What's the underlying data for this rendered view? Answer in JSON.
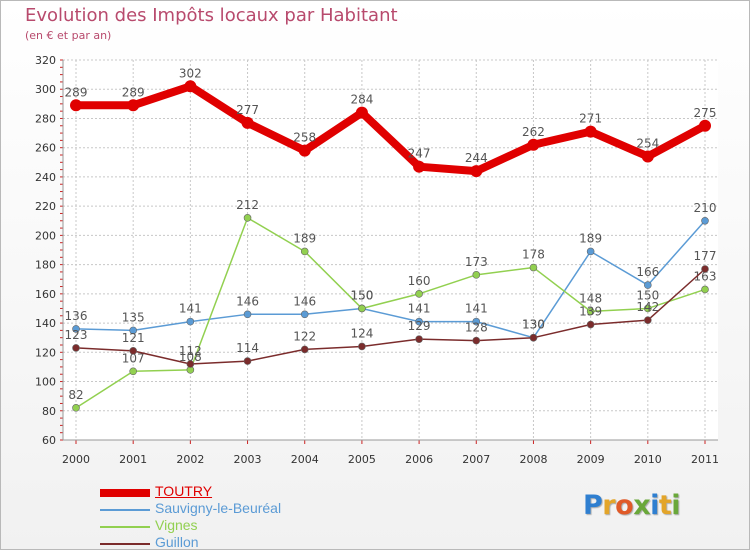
{
  "header": {
    "title": "Evolution des Impôts locaux par Habitant",
    "subtitle": "(en € et par an)"
  },
  "logo": {
    "text": "Proxiti",
    "letter_colors": [
      "#2f7fd0",
      "#e3a52a",
      "#e05a28",
      "#6aa83a",
      "#2f7fd0",
      "#e3a52a",
      "#6aa83a"
    ]
  },
  "chart_data": {
    "type": "line",
    "x": [
      "2000",
      "2001",
      "2002",
      "2003",
      "2004",
      "2005",
      "2006",
      "2007",
      "2008",
      "2009",
      "2010",
      "2011"
    ],
    "ylim": [
      60,
      320
    ],
    "yticks": [
      60,
      80,
      100,
      120,
      140,
      160,
      180,
      200,
      220,
      240,
      260,
      280,
      300,
      320
    ],
    "grid": true,
    "legend_position": "bottom-left",
    "series": [
      {
        "name": "TOUTRY",
        "color": "#e00000",
        "values": [
          289,
          289,
          302,
          277,
          258,
          284,
          247,
          244,
          262,
          271,
          254,
          275
        ]
      },
      {
        "name": "Sauvigny-le-Beuréal",
        "color": "#5b9bd5",
        "values": [
          136,
          135,
          141,
          146,
          146,
          150,
          141,
          141,
          130,
          189,
          166,
          210
        ]
      },
      {
        "name": "Vignes",
        "color": "#92d050",
        "values": [
          82,
          107,
          108,
          212,
          189,
          150,
          160,
          173,
          178,
          148,
          150,
          163
        ]
      },
      {
        "name": "Guillon",
        "color": "#7b2c2c",
        "values": [
          123,
          121,
          112,
          114,
          122,
          124,
          129,
          128,
          130,
          139,
          142,
          177
        ]
      }
    ]
  }
}
